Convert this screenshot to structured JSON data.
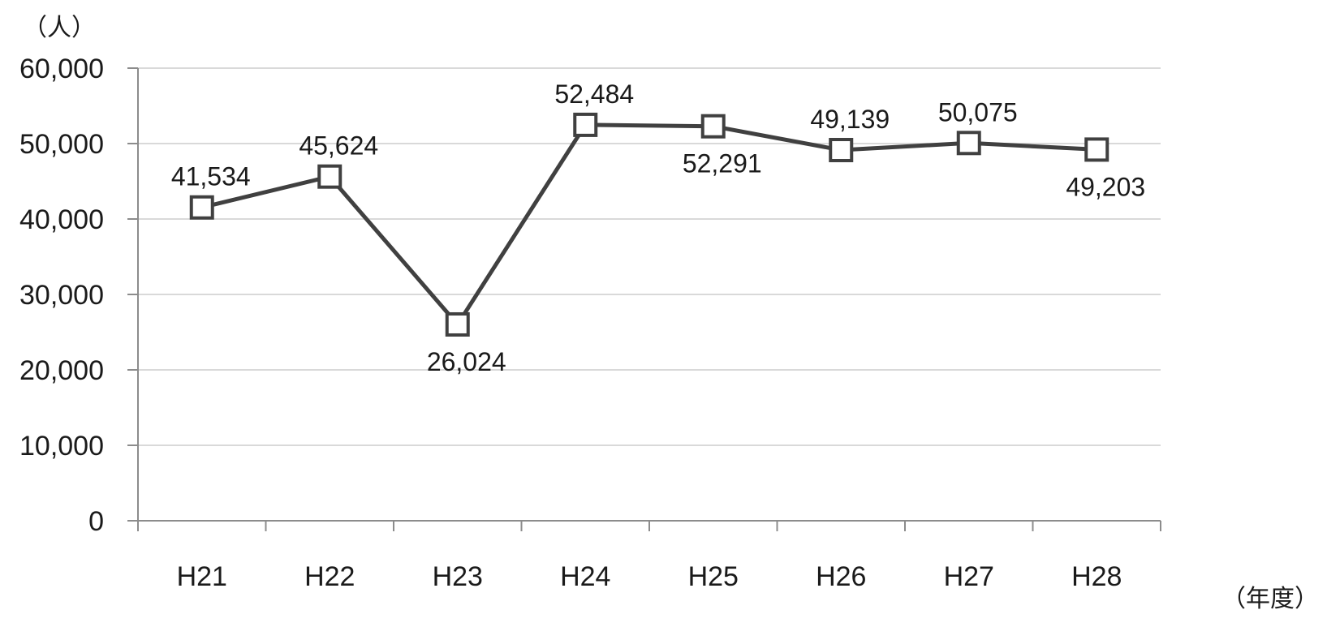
{
  "chart_data": {
    "type": "line",
    "title": "",
    "xlabel": "（年度）",
    "ylabel": "（人）",
    "categories": [
      "H21",
      "H22",
      "H23",
      "H24",
      "H25",
      "H26",
      "H27",
      "H28"
    ],
    "series": [
      {
        "values": [
          41534,
          45624,
          26024,
          52484,
          52291,
          49139,
          50075,
          49203
        ],
        "data_labels": [
          "41,534",
          "45,624",
          "26,024",
          "52,484",
          "52,291",
          "49,139",
          "50,075",
          "49,203"
        ],
        "label_positions": [
          "above",
          "above",
          "below",
          "above",
          "below",
          "above",
          "above",
          "below"
        ],
        "marker": "square-hollow",
        "color": "#404040"
      }
    ],
    "ylim": [
      0,
      60000
    ],
    "yticks": [
      0,
      10000,
      20000,
      30000,
      40000,
      50000,
      60000
    ],
    "ytick_labels": [
      "0",
      "10,000",
      "20,000",
      "30,000",
      "40,000",
      "50,000",
      "60,000"
    ],
    "grid": true,
    "grid_color": "#d9d9d9",
    "axis_color": "#8c8c8c",
    "legend": "none"
  }
}
